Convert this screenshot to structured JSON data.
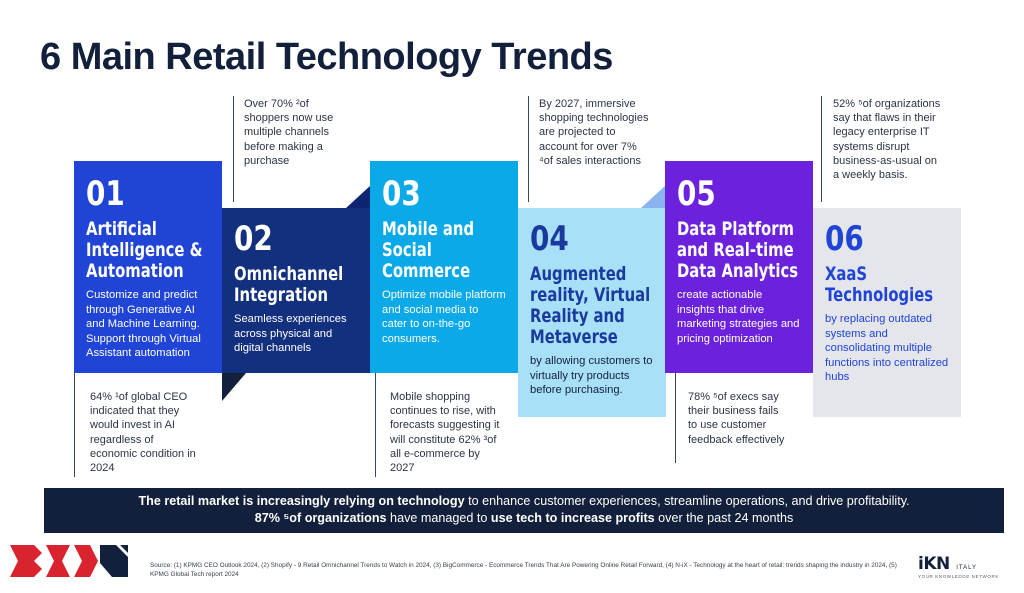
{
  "title": "6 Main Retail Technology Trends",
  "trends": [
    {
      "num": "01",
      "heading": "Artificial Intelligence & Automation",
      "desc": "Customize and predict through Generative AI and Machine Learning. Support through Virtual Assistant automation",
      "stat": "64% ¹of global CEO indicated that they would invest in AI regardless of economic condition in 2024",
      "color": "#1f44d6"
    },
    {
      "num": "02",
      "heading": "Omnichannel Integration",
      "desc": "Seamless experiences across physical and digital channels",
      "stat": "Over 70% ²of shoppers now use multiple channels before making a purchase",
      "color": "#13307f"
    },
    {
      "num": "03",
      "heading": "Mobile and Social Commerce",
      "desc": "Optimize mobile platform and social media to cater to on-the-go consumers.",
      "stat": "Mobile shopping continues to rise, with forecasts suggesting it will constitute 62% ³of all e-commerce by 2027",
      "color": "#0ba9e8"
    },
    {
      "num": "04",
      "heading": "Augmented reality, Virtual Reality and Metaverse",
      "desc": "by allowing customers to virtually try products before purchasing.",
      "stat": "By 2027, immersive shopping technologies are projected to account for over 7% ⁴of sales interactions",
      "color": "#a8e0f8"
    },
    {
      "num": "05",
      "heading": "Data Platform and Real-time Data Analytics",
      "desc": "create actionable insights that drive marketing strategies and pricing optimization",
      "stat": "78% ⁵of execs say their business fails to use customer feedback effectively",
      "color": "#6c22dc"
    },
    {
      "num": "06",
      "heading": "XaaS Technologies",
      "desc": "by replacing outdated systems and consolidating multiple functions into centralized hubs",
      "stat": "52% ⁵of organizations say that flaws in their legacy enterprise IT systems disrupt business-as-usual on a weekly basis.",
      "color": "#e4e6ec"
    }
  ],
  "banner": {
    "l1_bold1": "The retail market is increasingly relying on technology",
    "l1_rest": " to enhance customer experiences, streamline operations, and drive profitability.",
    "l2_bold1": "87% ⁵of organizations",
    "l2_mid": " have managed to ",
    "l2_bold2": "use tech to increase profits",
    "l2_rest": " over the past 24 months"
  },
  "source": "Source: (1) KPMG CEO Outlook 2024,  (2) Shopify - 9 Retail Omnichannel Trends to Watch in 2024, (3) BigCommerce - Ecommerce Trends That Are Powering Online Retail Forward, (4) N-iX - Technology at the heart of retail: trends shaping the industry in 2024, (5) KPMG Global Tech report 2024",
  "logos": {
    "right_main": "iKN",
    "right_sub": "ITALY",
    "right_tagline": "YOUR KNOWLEDGE NETWORK"
  }
}
